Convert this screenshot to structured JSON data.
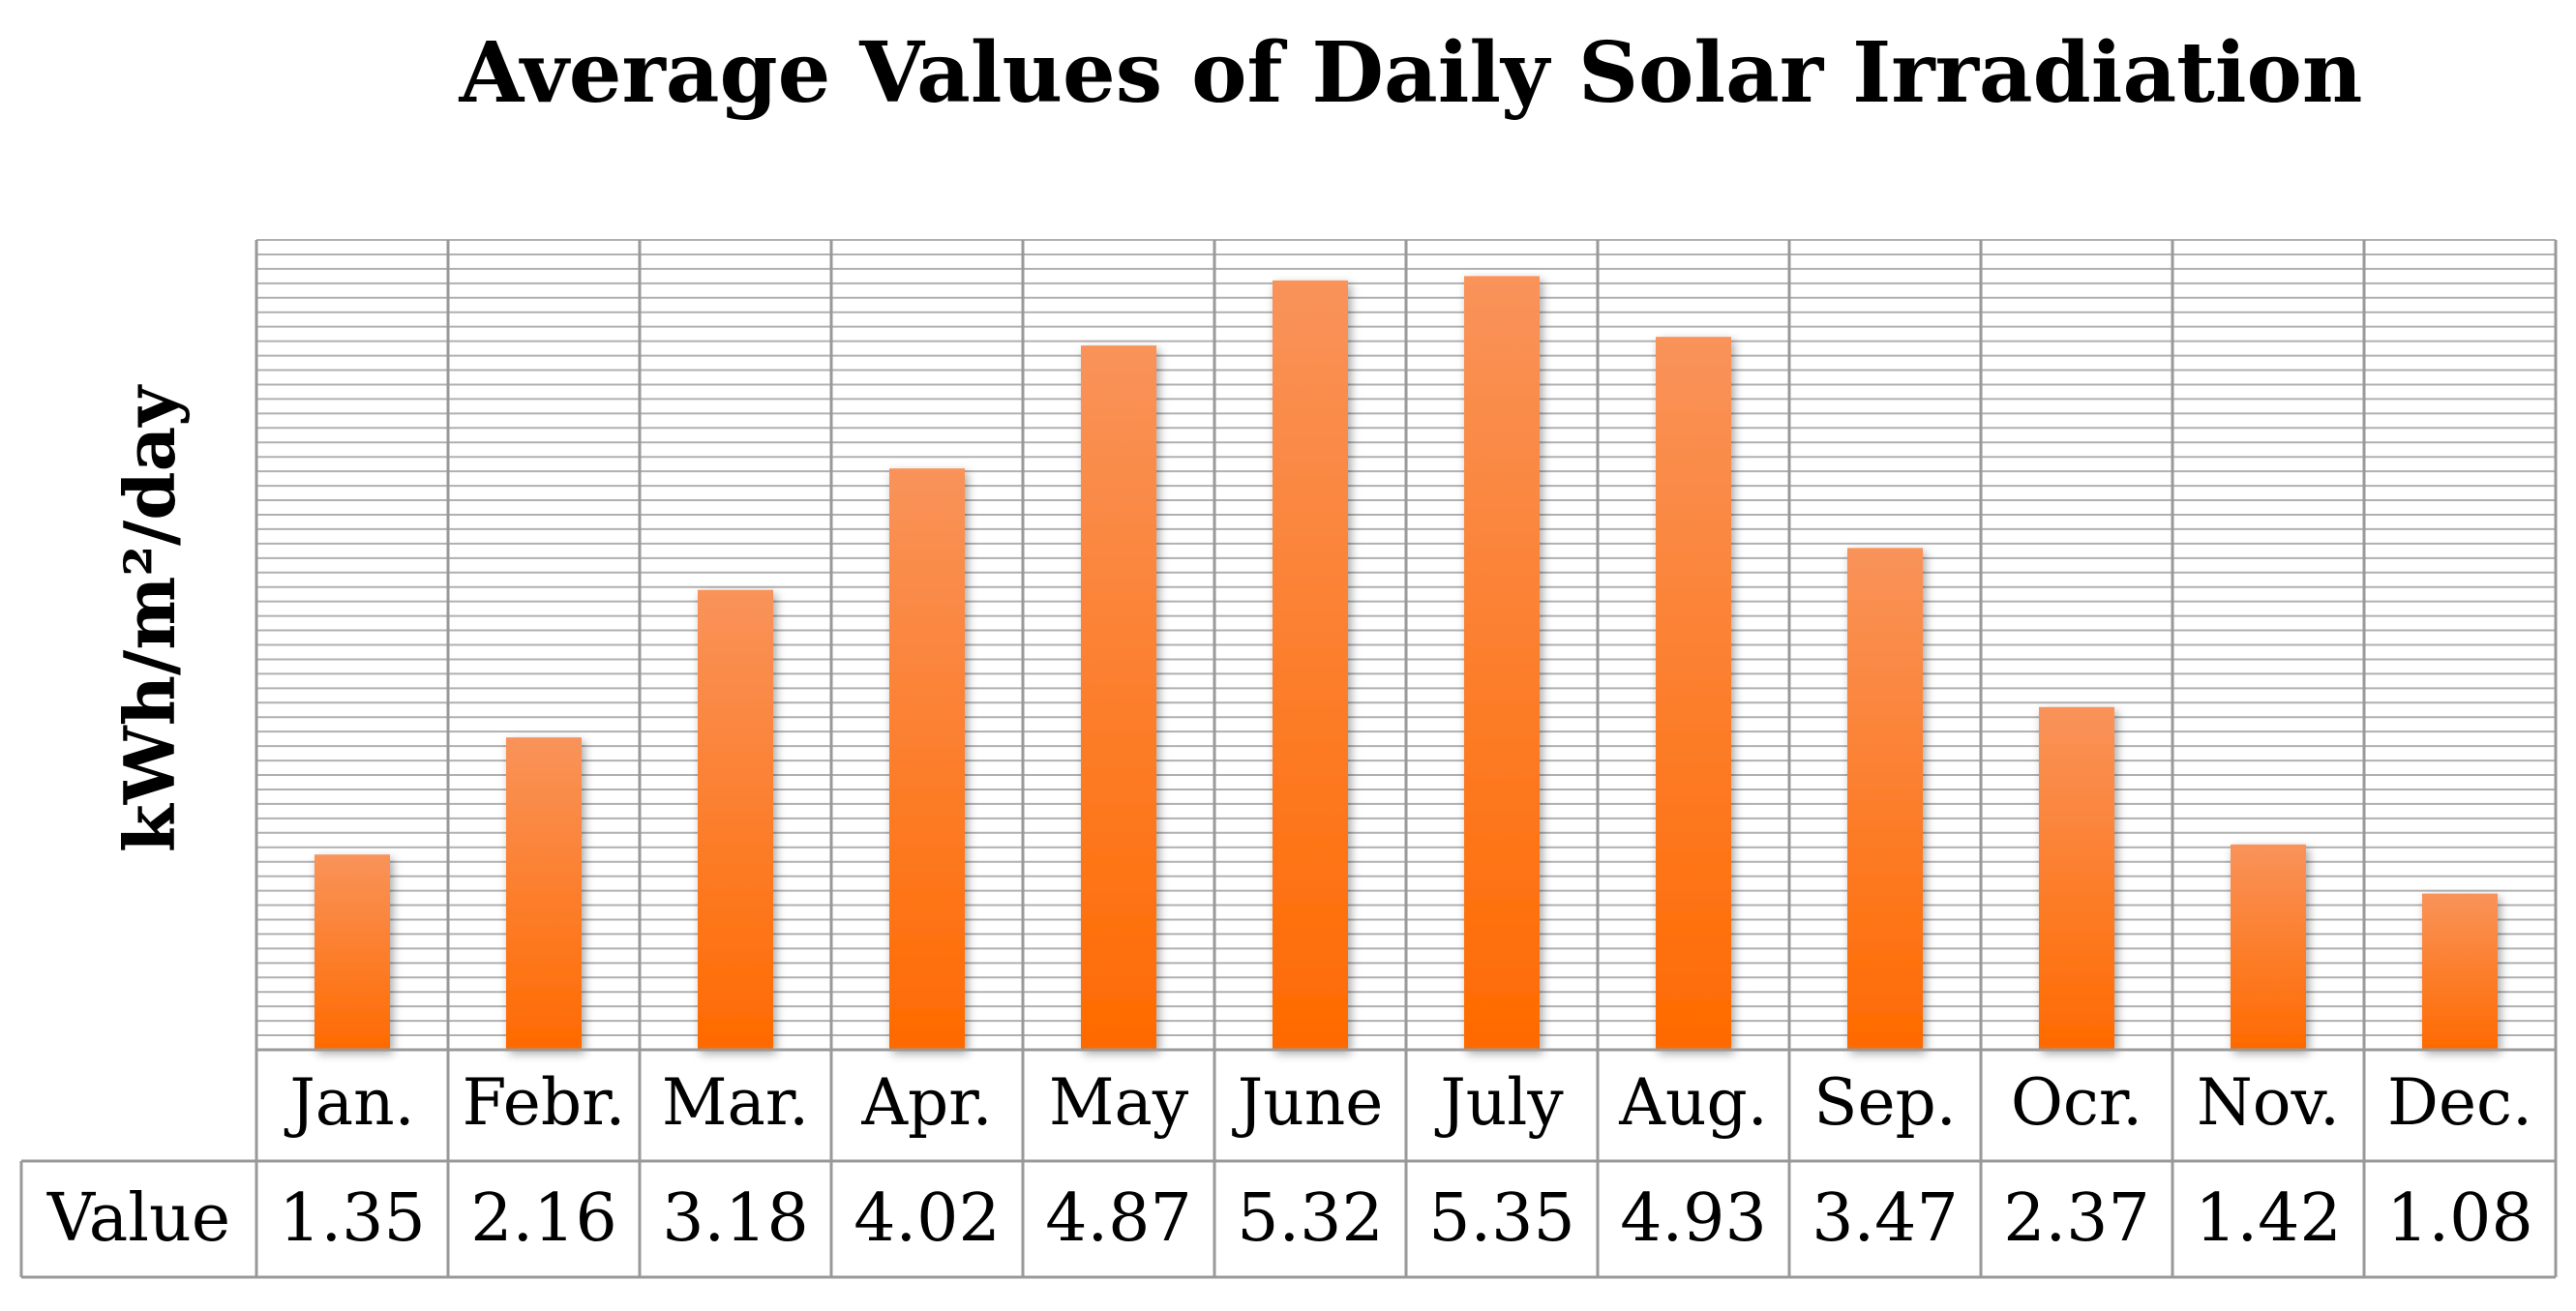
{
  "chart_data": {
    "type": "bar",
    "title": "Average Values of Daily Solar Irradiation",
    "ylabel": "kWh/m²/day",
    "xlabel": "",
    "table_row_label": "Value",
    "categories": [
      "Jan.",
      "Febr.",
      "Mar.",
      "Apr.",
      "May",
      "June",
      "July",
      "Aug.",
      "Sep.",
      "Ocr.",
      "Nov.",
      "Dec."
    ],
    "values": [
      1.35,
      2.16,
      3.18,
      4.02,
      4.87,
      5.32,
      5.35,
      4.93,
      3.47,
      2.37,
      1.42,
      1.08
    ],
    "value_labels": [
      "1.35",
      "2.16",
      "3.18",
      "4.02",
      "4.87",
      "5.32",
      "5.35",
      "4.93",
      "3.47",
      "2.37",
      "1.42",
      "1.08"
    ],
    "ylim": [
      0,
      5.6
    ],
    "grid_step": 0.1,
    "grid": true,
    "legend": "none",
    "colors": {
      "bar_top": "#F9935A",
      "bar_bottom": "#FF6A00",
      "grid": "#B0B0B0",
      "table_border": "#999999"
    }
  }
}
